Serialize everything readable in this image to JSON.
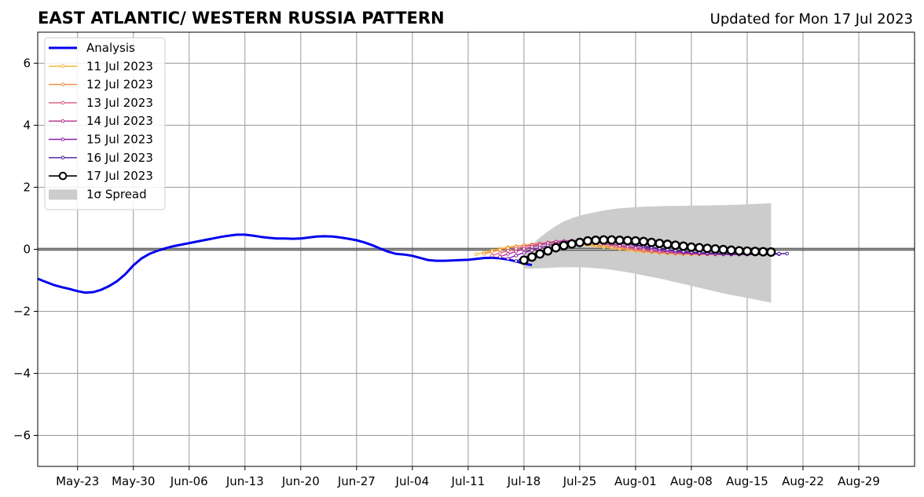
{
  "chart_data": {
    "type": "line",
    "title": "EAST ATLANTIC/ WESTERN RUSSIA PATTERN",
    "subtitle": "Updated for Mon 17 Jul 2023",
    "xlim": [
      "2023-05-18",
      "2023-09-05"
    ],
    "ylim": [
      -7,
      7
    ],
    "y_ticks": [
      -6,
      -4,
      -2,
      0,
      2,
      4,
      6
    ],
    "y_tick_labels": [
      "−6",
      "−4",
      "−2",
      "0",
      "2",
      "4",
      "6"
    ],
    "x_ticks": [
      "2023-05-23",
      "2023-05-30",
      "2023-06-06",
      "2023-06-13",
      "2023-06-20",
      "2023-06-27",
      "2023-07-04",
      "2023-07-11",
      "2023-07-18",
      "2023-07-25",
      "2023-08-01",
      "2023-08-08",
      "2023-08-15",
      "2023-08-22",
      "2023-08-29"
    ],
    "x_tick_labels": [
      "May-23",
      "May-30",
      "Jun-06",
      "Jun-13",
      "Jun-20",
      "Jun-27",
      "Jul-04",
      "Jul-11",
      "Jul-18",
      "Jul-25",
      "Aug-01",
      "Aug-08",
      "Aug-15",
      "Aug-22",
      "Aug-29"
    ],
    "grid": true,
    "zero_line": true,
    "legend_position": "top-left",
    "legend": [
      "Analysis",
      "11 Jul 2023",
      "12 Jul 2023",
      "13 Jul 2023",
      "14 Jul 2023",
      "15 Jul 2023",
      "16 Jul 2023",
      "17 Jul 2023",
      "1σ Spread"
    ],
    "analysis": {
      "name": "Analysis",
      "color": "#0000ee",
      "start_date": "2023-05-18",
      "values": [
        -0.95,
        -1.05,
        -1.15,
        -1.22,
        -1.28,
        -1.35,
        -1.4,
        -1.38,
        -1.3,
        -1.18,
        -1.02,
        -0.8,
        -0.52,
        -0.3,
        -0.15,
        -0.05,
        0.03,
        0.1,
        0.15,
        0.2,
        0.25,
        0.3,
        0.35,
        0.4,
        0.44,
        0.47,
        0.47,
        0.44,
        0.4,
        0.37,
        0.35,
        0.35,
        0.34,
        0.35,
        0.38,
        0.41,
        0.42,
        0.41,
        0.38,
        0.34,
        0.29,
        0.22,
        0.13,
        0.02,
        -0.08,
        -0.15,
        -0.17,
        -0.21,
        -0.28,
        -0.35,
        -0.37,
        -0.37,
        -0.36,
        -0.35,
        -0.34,
        -0.31,
        -0.28,
        -0.27,
        -0.29,
        -0.33,
        -0.39,
        -0.46,
        -0.51
      ]
    },
    "forecasts": [
      {
        "name": "11 Jul 2023",
        "color": "#f2b830",
        "start_date": "2023-07-12",
        "values": [
          -0.16,
          -0.1,
          -0.04,
          0.02,
          0.07,
          0.1,
          0.13,
          0.16,
          0.18,
          0.19,
          0.2,
          0.19,
          0.18,
          0.16,
          0.13,
          0.1,
          0.07,
          0.04,
          0.01,
          -0.02,
          -0.05,
          -0.08,
          -0.1,
          -0.12,
          -0.14,
          -0.15,
          -0.16,
          -0.17,
          -0.17,
          -0.17,
          -0.17,
          -0.16,
          -0.16,
          -0.15,
          -0.15
        ]
      },
      {
        "name": "12 Jul 2023",
        "color": "#f0883c",
        "start_date": "2023-07-13",
        "values": [
          -0.15,
          -0.08,
          -0.02,
          0.04,
          0.09,
          0.13,
          0.16,
          0.19,
          0.21,
          0.22,
          0.22,
          0.21,
          0.19,
          0.17,
          0.14,
          0.11,
          0.07,
          0.04,
          0.01,
          -0.03,
          -0.06,
          -0.08,
          -0.1,
          -0.12,
          -0.13,
          -0.14,
          -0.15,
          -0.15,
          -0.16,
          -0.16,
          -0.16,
          -0.15,
          -0.15,
          -0.14,
          -0.14
        ]
      },
      {
        "name": "13 Jul 2023",
        "color": "#e0587a",
        "start_date": "2023-07-14",
        "values": [
          -0.2,
          -0.12,
          -0.05,
          0.02,
          0.08,
          0.13,
          0.18,
          0.22,
          0.25,
          0.27,
          0.27,
          0.26,
          0.24,
          0.21,
          0.17,
          0.13,
          0.09,
          0.05,
          0.01,
          -0.03,
          -0.06,
          -0.09,
          -0.11,
          -0.13,
          -0.14,
          -0.15,
          -0.16,
          -0.16,
          -0.17,
          -0.17,
          -0.17,
          -0.16,
          -0.16,
          -0.15,
          -0.15
        ]
      },
      {
        "name": "14 Jul 2023",
        "color": "#b3308e",
        "start_date": "2023-07-15",
        "values": [
          -0.24,
          -0.15,
          -0.07,
          0.01,
          0.08,
          0.14,
          0.2,
          0.24,
          0.27,
          0.28,
          0.28,
          0.26,
          0.24,
          0.21,
          0.17,
          0.13,
          0.09,
          0.05,
          0.02,
          -0.02,
          -0.05,
          -0.08,
          -0.1,
          -0.12,
          -0.13,
          -0.14,
          -0.15,
          -0.15,
          -0.16,
          -0.16,
          -0.16,
          -0.15,
          -0.15,
          -0.14,
          -0.14
        ]
      },
      {
        "name": "15 Jul 2023",
        "color": "#8a1fa8",
        "start_date": "2023-07-16",
        "values": [
          -0.3,
          -0.2,
          -0.11,
          -0.03,
          0.05,
          0.12,
          0.18,
          0.23,
          0.27,
          0.29,
          0.3,
          0.29,
          0.27,
          0.24,
          0.2,
          0.16,
          0.12,
          0.08,
          0.04,
          0.0,
          -0.03,
          -0.06,
          -0.09,
          -0.11,
          -0.13,
          -0.14,
          -0.15,
          -0.16,
          -0.17,
          -0.17,
          -0.17,
          -0.17,
          -0.17,
          -0.16,
          -0.16
        ]
      },
      {
        "name": "16 Jul 2023",
        "color": "#4a1a9c",
        "start_date": "2023-07-17",
        "values": [
          -0.38,
          -0.27,
          -0.17,
          -0.08,
          0.01,
          0.08,
          0.15,
          0.2,
          0.24,
          0.26,
          0.27,
          0.26,
          0.24,
          0.21,
          0.18,
          0.14,
          0.1,
          0.06,
          0.03,
          -0.01,
          -0.04,
          -0.07,
          -0.09,
          -0.11,
          -0.12,
          -0.13,
          -0.14,
          -0.15,
          -0.15,
          -0.15,
          -0.15,
          -0.15,
          -0.14,
          -0.14,
          -0.14
        ]
      },
      {
        "name": "17 Jul 2023",
        "color": "#000000",
        "start_date": "2023-07-18",
        "values": [
          -0.35,
          -0.25,
          -0.15,
          -0.05,
          0.05,
          0.12,
          0.17,
          0.22,
          0.27,
          0.29,
          0.3,
          0.3,
          0.29,
          0.28,
          0.27,
          0.25,
          0.22,
          0.19,
          0.16,
          0.13,
          0.1,
          0.07,
          0.05,
          0.03,
          0.01,
          -0.01,
          -0.03,
          -0.05,
          -0.06,
          -0.07,
          -0.08,
          -0.09
        ]
      }
    ],
    "spread": {
      "name": "1σ Spread",
      "color": "#cccccc",
      "start_date": "2023-07-18",
      "upper": [
        -0.1,
        0.15,
        0.38,
        0.58,
        0.75,
        0.9,
        1.0,
        1.08,
        1.15,
        1.2,
        1.25,
        1.29,
        1.32,
        1.34,
        1.36,
        1.37,
        1.38,
        1.39,
        1.4,
        1.4,
        1.4,
        1.41,
        1.41,
        1.41,
        1.42,
        1.42,
        1.43,
        1.44,
        1.45,
        1.46,
        1.47,
        1.48
      ],
      "lower": [
        -0.62,
        -0.62,
        -0.61,
        -0.6,
        -0.59,
        -0.58,
        -0.58,
        -0.58,
        -0.59,
        -0.61,
        -0.63,
        -0.66,
        -0.7,
        -0.74,
        -0.79,
        -0.84,
        -0.89,
        -0.94,
        -1.0,
        -1.06,
        -1.12,
        -1.18,
        -1.24,
        -1.3,
        -1.36,
        -1.42,
        -1.47,
        -1.52,
        -1.57,
        -1.62,
        -1.67,
        -1.72
      ]
    }
  }
}
